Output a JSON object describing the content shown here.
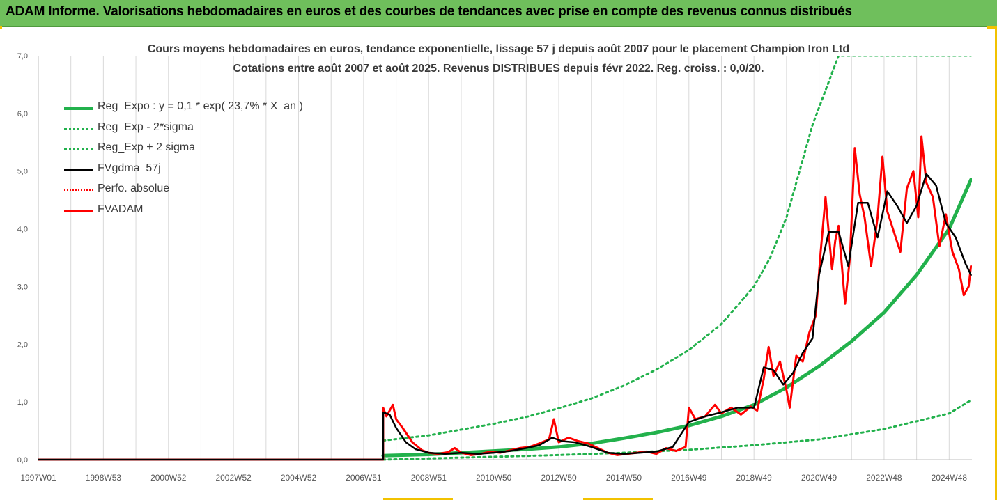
{
  "header": {
    "title": "ADAM Informe. Valorisations hebdomadaires en euros et des courbes de tendances avec prise en compte des revenus connus distribués"
  },
  "colors": {
    "banner": "#6fbf5c",
    "accent": "#f2c200",
    "green": "#22b14c",
    "black": "#000000",
    "red": "#ff0000",
    "grid": "#d9d9d9"
  },
  "chart_data": {
    "type": "line",
    "title": "Cours moyens hebdomadaires en euros, tendance exponentielle, lissage 57 j depuis août 2007 pour le placement Champion Iron Ltd",
    "subtitle": "Cotations entre août 2007 et août 2025. Revenus DISTRIBUES depuis févr 2022. Reg. croiss. : 0,0/20.",
    "xlabel": "",
    "ylabel": "",
    "ylim": [
      0,
      7
    ],
    "yticks": [
      "0,0",
      "1,0",
      "2,0",
      "3,0",
      "4,0",
      "5,0",
      "6,0",
      "7,0"
    ],
    "xlim": [
      1997.0,
      2025.7
    ],
    "xticks": [
      {
        "label": "1997W01",
        "x": 1997.0
      },
      {
        "label": "1998W53",
        "x": 1999.0
      },
      {
        "label": "2000W52",
        "x": 2001.0
      },
      {
        "label": "2002W52",
        "x": 2003.0
      },
      {
        "label": "2004W52",
        "x": 2005.0
      },
      {
        "label": "2006W51",
        "x": 2007.0
      },
      {
        "label": "2008W51",
        "x": 2009.0
      },
      {
        "label": "2010W50",
        "x": 2011.0
      },
      {
        "label": "2012W50",
        "x": 2013.0
      },
      {
        "label": "2014W50",
        "x": 2015.0
      },
      {
        "label": "2016W49",
        "x": 2017.0
      },
      {
        "label": "2018W49",
        "x": 2019.0
      },
      {
        "label": "2020W49",
        "x": 2021.0
      },
      {
        "label": "2022W48",
        "x": 2023.0
      },
      {
        "label": "2024W48",
        "x": 2025.0
      }
    ],
    "grid": "vertical",
    "legend_position": "top-left",
    "series": [
      {
        "name": "Reg_Expo : y = 0,1 * exp( 23,7% *  X_an )",
        "color": "#22b14c",
        "style": "solid",
        "width": 5,
        "x": [
          2007.6,
          2009,
          2010,
          2011,
          2012,
          2013,
          2014,
          2015,
          2016,
          2017,
          2018,
          2019,
          2020,
          2021,
          2022,
          2023,
          2024,
          2025,
          2025.67
        ],
        "y": [
          0.07,
          0.09,
          0.12,
          0.15,
          0.18,
          0.22,
          0.28,
          0.37,
          0.47,
          0.59,
          0.75,
          0.95,
          1.25,
          1.62,
          2.05,
          2.55,
          3.2,
          4.0,
          4.85
        ]
      },
      {
        "name": "Reg_Exp - 2*sigma",
        "color": "#22b14c",
        "style": "dotted",
        "width": 3,
        "x": [
          2007.6,
          2009,
          2011,
          2013,
          2015,
          2017,
          2019,
          2021,
          2023,
          2025,
          2025.67
        ],
        "y": [
          0.0,
          0.02,
          0.05,
          0.08,
          0.12,
          0.17,
          0.25,
          0.35,
          0.53,
          0.8,
          1.03
        ]
      },
      {
        "name": "Reg_Exp + 2 sigma",
        "color": "#22b14c",
        "style": "dotted",
        "width": 3,
        "x": [
          2007.6,
          2009,
          2010,
          2011,
          2012,
          2013,
          2014,
          2015,
          2016,
          2017,
          2018,
          2019,
          2019.5,
          2020,
          2020.3,
          2020.8,
          2021.6,
          2025.67
        ],
        "y": [
          0.33,
          0.42,
          0.52,
          0.62,
          0.74,
          0.89,
          1.06,
          1.28,
          1.56,
          1.9,
          2.35,
          3.0,
          3.5,
          4.2,
          4.8,
          5.8,
          7.0,
          7.0
        ]
      },
      {
        "name": "FVgdma_57j",
        "color": "#000000",
        "style": "solid",
        "width": 2.5,
        "x": [
          1997.0,
          2007.6,
          2007.6,
          2007.8,
          2008.0,
          2008.3,
          2008.6,
          2009.0,
          2009.5,
          2010.0,
          2010.5,
          2011.0,
          2011.5,
          2012.0,
          2012.4,
          2012.8,
          2013.1,
          2013.5,
          2014.0,
          2014.5,
          2015.0,
          2015.5,
          2016.0,
          2016.5,
          2017.0,
          2017.5,
          2018.0,
          2018.5,
          2019.0,
          2019.3,
          2019.6,
          2019.9,
          2020.2,
          2020.5,
          2020.8,
          2021.0,
          2021.3,
          2021.6,
          2021.9,
          2022.2,
          2022.5,
          2022.8,
          2023.1,
          2023.4,
          2023.7,
          2024.0,
          2024.3,
          2024.6,
          2024.9,
          2025.2,
          2025.5,
          2025.67
        ],
        "y": [
          0.0,
          0.0,
          0.82,
          0.78,
          0.55,
          0.3,
          0.18,
          0.12,
          0.1,
          0.12,
          0.1,
          0.12,
          0.15,
          0.2,
          0.25,
          0.38,
          0.32,
          0.3,
          0.22,
          0.12,
          0.1,
          0.12,
          0.14,
          0.22,
          0.65,
          0.75,
          0.82,
          0.9,
          0.9,
          1.6,
          1.55,
          1.3,
          1.5,
          1.85,
          2.1,
          3.2,
          3.95,
          3.95,
          3.35,
          4.45,
          4.45,
          3.85,
          4.65,
          4.4,
          4.1,
          4.4,
          4.95,
          4.75,
          4.1,
          3.85,
          3.4,
          3.2
        ]
      },
      {
        "name": "Perfo. absolue",
        "color": "#ff0000",
        "style": "dotted",
        "width": 2,
        "x": [
          1997.0,
          2007.6
        ],
        "y": [
          0.0,
          0.0
        ]
      },
      {
        "name": "FVADAM",
        "color": "#ff0000",
        "style": "solid",
        "width": 3,
        "x": [
          1997.0,
          2007.6,
          2007.6,
          2007.7,
          2007.9,
          2008.0,
          2008.2,
          2008.5,
          2008.8,
          2009.0,
          2009.3,
          2009.6,
          2009.8,
          2010.0,
          2010.3,
          2010.6,
          2010.9,
          2011.2,
          2011.5,
          2011.8,
          2012.1,
          2012.4,
          2012.7,
          2012.85,
          2013.0,
          2013.3,
          2013.6,
          2013.9,
          2014.2,
          2014.5,
          2014.8,
          2015.1,
          2015.4,
          2015.7,
          2016.0,
          2016.3,
          2016.6,
          2016.9,
          2017.0,
          2017.2,
          2017.5,
          2017.8,
          2018.0,
          2018.3,
          2018.6,
          2018.9,
          2019.1,
          2019.3,
          2019.45,
          2019.6,
          2019.8,
          2020.0,
          2020.1,
          2020.3,
          2020.5,
          2020.7,
          2020.9,
          2021.05,
          2021.2,
          2021.4,
          2021.5,
          2021.6,
          2021.8,
          2021.95,
          2022.1,
          2022.25,
          2022.4,
          2022.6,
          2022.8,
          2022.95,
          2023.1,
          2023.3,
          2023.5,
          2023.7,
          2023.9,
          2024.05,
          2024.15,
          2024.3,
          2024.5,
          2024.7,
          2024.9,
          2025.1,
          2025.3,
          2025.45,
          2025.6,
          2025.67
        ],
        "y": [
          0.0,
          0.0,
          0.9,
          0.75,
          0.95,
          0.7,
          0.55,
          0.3,
          0.16,
          0.12,
          0.1,
          0.13,
          0.2,
          0.12,
          0.08,
          0.1,
          0.14,
          0.12,
          0.16,
          0.2,
          0.22,
          0.28,
          0.35,
          0.7,
          0.3,
          0.38,
          0.32,
          0.28,
          0.2,
          0.12,
          0.08,
          0.1,
          0.12,
          0.14,
          0.1,
          0.2,
          0.15,
          0.22,
          0.9,
          0.7,
          0.75,
          0.95,
          0.8,
          0.9,
          0.78,
          0.92,
          0.85,
          1.4,
          1.95,
          1.45,
          1.7,
          1.2,
          0.9,
          1.8,
          1.7,
          2.2,
          2.5,
          3.6,
          4.55,
          3.3,
          3.8,
          4.05,
          2.7,
          3.5,
          5.4,
          4.6,
          4.2,
          3.35,
          4.2,
          5.25,
          4.3,
          3.95,
          3.6,
          4.7,
          5.0,
          4.2,
          5.6,
          4.8,
          4.55,
          3.7,
          4.25,
          3.6,
          3.3,
          2.85,
          3.0,
          3.35
        ]
      }
    ]
  }
}
